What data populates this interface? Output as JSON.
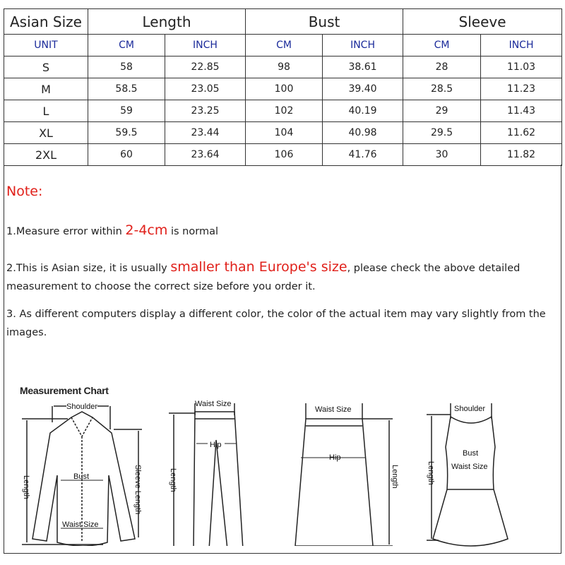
{
  "size_table": {
    "headers": [
      "Asian Size",
      "Length",
      "Bust",
      "Sleeve"
    ],
    "units": [
      "UNIT",
      "CM",
      "INCH",
      "CM",
      "INCH",
      "CM",
      "INCH"
    ],
    "rows": [
      [
        "S",
        "58",
        "22.85",
        "98",
        "38.61",
        "28",
        "11.03"
      ],
      [
        "M",
        "58.5",
        "23.05",
        "100",
        "39.40",
        "28.5",
        "11.23"
      ],
      [
        "L",
        "59",
        "23.25",
        "102",
        "40.19",
        "29",
        "11.43"
      ],
      [
        "XL",
        "59.5",
        "23.44",
        "104",
        "40.98",
        "29.5",
        "11.62"
      ],
      [
        "2XL",
        "60",
        "23.64",
        "106",
        "41.76",
        "30",
        "11.82"
      ]
    ]
  },
  "notes": {
    "title": "Note:",
    "n1_pre": "1.Measure error within ",
    "n1_em": "2-4cm",
    "n1_post": " is normal",
    "n2_pre": "2.This is Asian size, it is usually ",
    "n2_em": "smaller than Europe's size",
    "n2_post": ", please check the above detailed measurement to choose the correct size before you order it.",
    "n3": "3. As different computers display a different color, the color of the actual item may vary slightly from the images."
  },
  "chart": {
    "title": "Measurement Chart",
    "shirt": {
      "shoulder": "Shoulder",
      "bust": "Bust",
      "waist": "Waist Size",
      "length": "Length",
      "sleeve": "Sleeve Length"
    },
    "pants": {
      "waist": "Waist Size",
      "hip": "Hip",
      "length": "Length"
    },
    "skirt": {
      "waist": "Waist Size",
      "hip": "Hip",
      "length": "Length"
    },
    "dress": {
      "shoulder": "Shoulder",
      "bust": "Bust",
      "waist": "Waist Size",
      "length": "Length"
    }
  },
  "colors": {
    "accent_red": "#e0201a",
    "unit_blue": "#1a2a9a"
  }
}
